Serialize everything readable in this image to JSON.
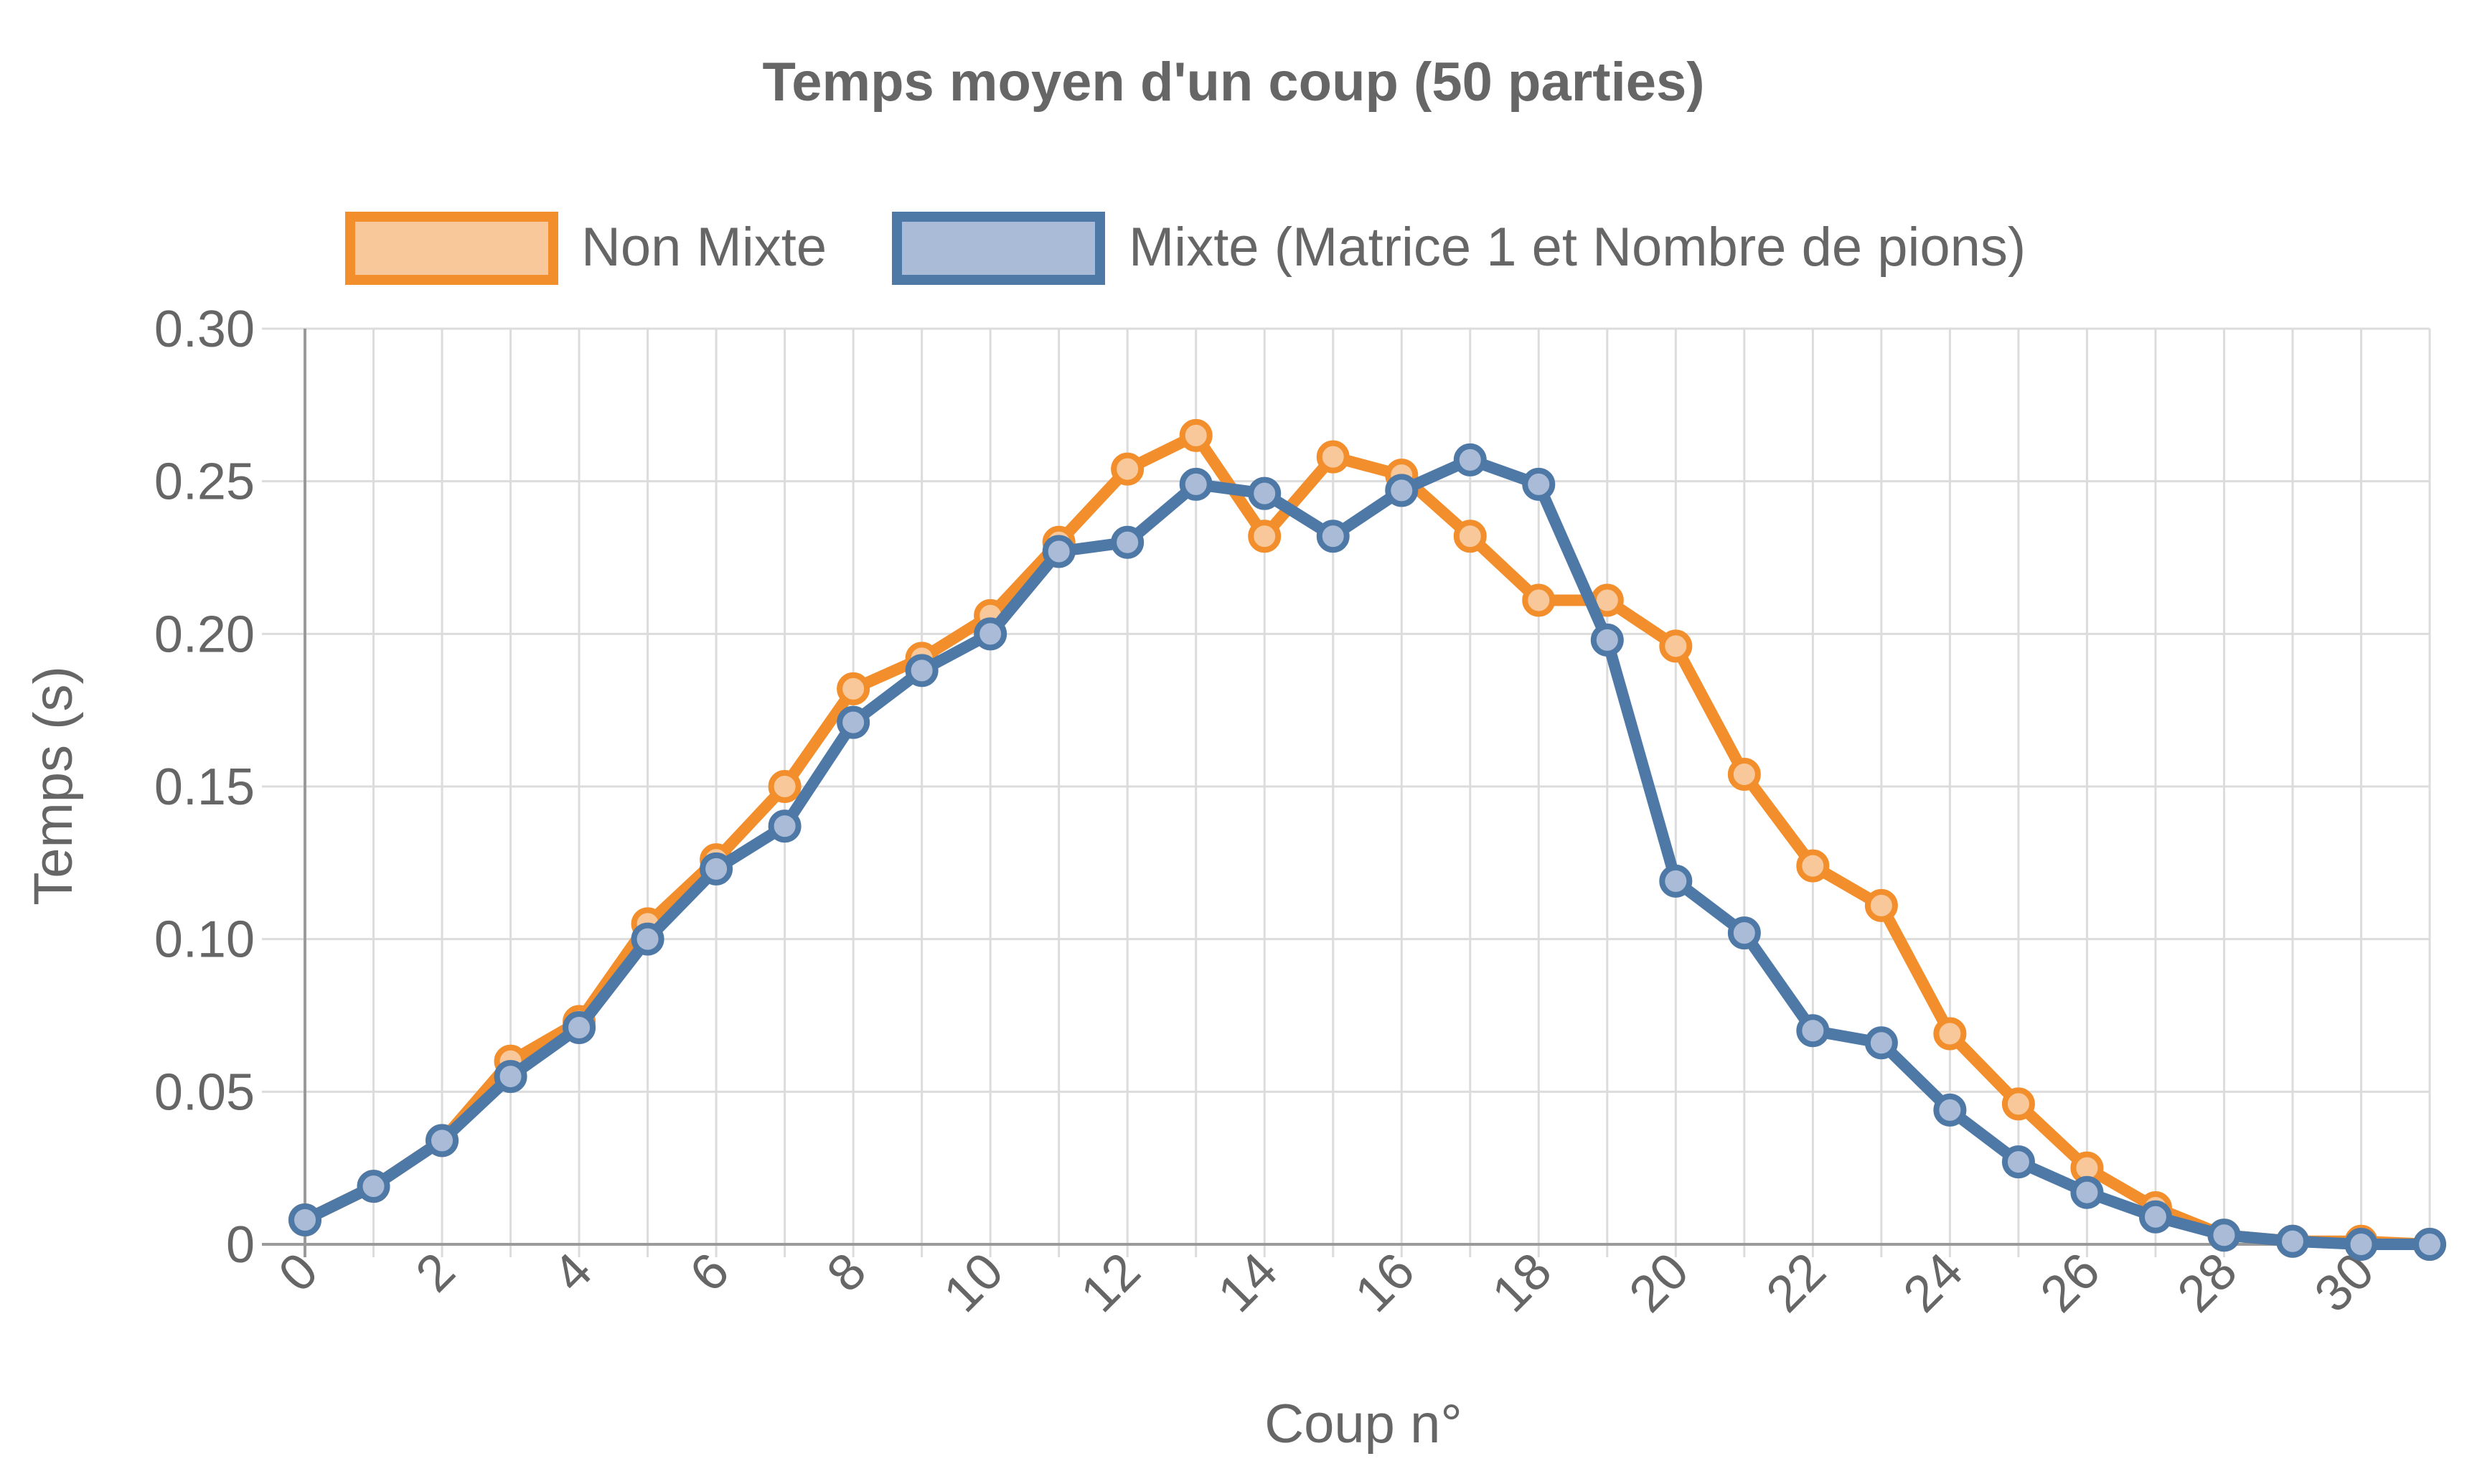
{
  "chart_data": {
    "type": "line",
    "title": "Temps moyen d'un coup (50 parties)",
    "xlabel": "Coup n°",
    "ylabel": "Temps (s)",
    "xlim": [
      0,
      31
    ],
    "ylim": [
      0,
      0.3
    ],
    "x": [
      0,
      1,
      2,
      3,
      4,
      5,
      6,
      7,
      8,
      9,
      10,
      11,
      12,
      13,
      14,
      15,
      16,
      17,
      18,
      19,
      20,
      21,
      22,
      23,
      24,
      25,
      26,
      27,
      28,
      29,
      30,
      31
    ],
    "x_tick_labels": [
      "0",
      "2",
      "4",
      "6",
      "8",
      "10",
      "12",
      "14",
      "16",
      "18",
      "20",
      "22",
      "24",
      "26",
      "28",
      "30"
    ],
    "y_tick_labels": [
      "0",
      "0.05",
      "0.10",
      "0.15",
      "0.20",
      "0.25",
      "0.30"
    ],
    "grid": true,
    "legend_position": "top-center",
    "series": [
      {
        "name": "Non Mixte",
        "color": "#f28e2b",
        "fill": "#f8c89a",
        "values": [
          0.008,
          0.019,
          0.034,
          0.06,
          0.073,
          0.105,
          0.126,
          0.15,
          0.182,
          0.192,
          0.206,
          0.23,
          0.254,
          0.265,
          0.232,
          0.258,
          0.252,
          0.232,
          0.211,
          0.211,
          0.196,
          0.154,
          0.124,
          0.111,
          0.069,
          0.046,
          0.025,
          0.012,
          0.003,
          0.001,
          0.001,
          0.0
        ]
      },
      {
        "name": "Mixte (Matrice 1 et Nombre de pions)",
        "color": "#4e79a7",
        "fill": "#a9bbd6",
        "values": [
          0.008,
          0.019,
          0.034,
          0.055,
          0.071,
          0.1,
          0.123,
          0.137,
          0.171,
          0.188,
          0.2,
          0.227,
          0.23,
          0.249,
          0.246,
          0.232,
          0.247,
          0.257,
          0.249,
          0.198,
          0.119,
          0.102,
          0.07,
          0.066,
          0.044,
          0.027,
          0.017,
          0.009,
          0.003,
          0.001,
          0.0,
          0.0
        ]
      }
    ]
  }
}
